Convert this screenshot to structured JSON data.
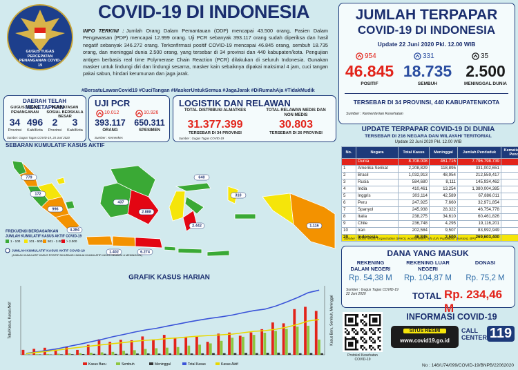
{
  "header": {
    "title": "COVID-19 DI INDONESIA",
    "logo_text": "GUGUS TUGAS PERCEPATAN PENANGANAN COVID-19",
    "info_label": "INFO TERKINI :",
    "info": "Jumlah Orang Dalam Pemantauan (ODP) mencapai 43.500 orang, Pasien Dalam Pengawasan (PDP) mencapai 12.999 orang. Uji PCR sebanyak 393.117 orang sudah diperiksa dan hasil negatif sebanyak 346.272 orang. Terkonfirmasi positif COVID-19 mencapai 46.845 orang, sembuh 18.735 orang, dan meninggal dunia 2.500 orang, yang tersebar di 34 provinsi dan 440 kabupaten/kota. Pengujian antigen berbasis real time Polymerase Chain Reaction (PCR) dilakukan di seluruh Indonesia. Gunakan masker untuk lindungi diri dan lindungi sesama, masker kain sebaiknya dipakai maksimal 4 jam, cuci tangan pakai sabun, hindari kerumunan dan jaga jarak.",
    "hashtags": "#BersatuLawanCovid19 #CuciTangan #MaskerUntukSemua #JagaJarak #DiRumahAja #TidakMudik"
  },
  "summary": {
    "title1": "JUMLAH TERPAPAR",
    "title2": "COVID-19 DI INDONESIA",
    "update": "Update 22 Juni 2020 Pkl. 12.00 WIB",
    "stats": [
      {
        "delta": "954",
        "value": "46.845",
        "label": "POSITIF",
        "color": "#e2231a"
      },
      {
        "delta": "331",
        "value": "18.735",
        "label": "SEMBUH",
        "color": "#2a4da0"
      },
      {
        "delta": "35",
        "value": "2.500",
        "label": "MENINGGAL DUNIA",
        "color": "#1a1a1a"
      }
    ],
    "spread": "TERSEBAR DI 34 PROVINSI, 440 KABUPATEN/KOTA",
    "source": "Sumber : Kementerian Kesehatan"
  },
  "regions": {
    "title": "DAERAH TELAH MENETAPKAN",
    "groups": [
      {
        "label": "GUGUS TUGAS PENANGANAN",
        "items": [
          {
            "value": "34",
            "unit": "Provinsi"
          },
          {
            "value": "496",
            "unit": "Kab/Kota"
          }
        ]
      },
      {
        "label": "PEMBATASAN SOSIAL BERSKALA BESAR",
        "items": [
          {
            "value": "2",
            "unit": "Provinsi"
          },
          {
            "value": "3",
            "unit": "Kab/Kota"
          }
        ]
      }
    ],
    "source": "Sumber: Gugus Tugas COVID-19, 20 Juni 2020"
  },
  "pcr": {
    "title": "UJI PCR",
    "items": [
      {
        "delta": "10.012",
        "value": "393.117",
        "label": "ORANG"
      },
      {
        "delta": "10.926",
        "value": "650.311",
        "label": "SPESIMEN"
      }
    ],
    "source": "Sumber : Kemenkes"
  },
  "logistics": {
    "title": "LOGISTIK DAN RELAWAN",
    "items": [
      {
        "label": "TOTAL DISTRIBUSI ALMATKES",
        "value": "31.377.399",
        "note": "TERSEBAR DI 34 PROVINSI"
      },
      {
        "label": "TOTAL RELAWAN MEDIS DAN NON MEDIS",
        "value": "30.803",
        "note": "TERSEBAR DI 26 PROVINSI"
      }
    ],
    "source": "Sumber : Gugus Tugas COVID-19"
  },
  "map": {
    "title": "SEBARAN KUMULATIF KASUS AKTIF",
    "labels": [
      "779",
      "172",
      "996",
      "4.384",
      "1.402",
      "6.274",
      "437",
      "2.888",
      "640",
      "2.442",
      "310",
      "1.116"
    ],
    "legend_title": "FREKUENSI BERDASARKAN",
    "legend_subtitle": "JUMLAH KUMULATIF KASUS AKTIF COVID-19",
    "classes": [
      {
        "label": "1 - 100",
        "color": "#3aa935"
      },
      {
        "label": "101 - 500",
        "color": "#f5e50a"
      },
      {
        "label": "501 - 2.000",
        "color": "#f39200"
      },
      {
        "label": "> 2.000",
        "color": "#e30613"
      }
    ],
    "note": "JUMLAH KUMULATIF KASUS AKTIF COVID-19",
    "note_detail": "(JUMLAH KUMULATIF KASUS POSITIF DIKURANGI JUMLAH KUMULATIF KASUS SEMBUH & MENINGGAL)"
  },
  "chart_data": {
    "type": "bar",
    "title": "GRAFIK KASUS HARIAN",
    "y_label": "Total Kasus, Kasus Aktif",
    "y2_label": "Kasus Baru, Sembuh, Meninggal",
    "categories": [
      null,
      null,
      null,
      null,
      null,
      null,
      null,
      null,
      null,
      null,
      null,
      null,
      null,
      null,
      null,
      null,
      null,
      null,
      null,
      null,
      null,
      null,
      null,
      null,
      null,
      null,
      null,
      null
    ],
    "ylim": [
      0,
      50000
    ],
    "y2lim": [
      0,
      1500
    ],
    "series": [
      {
        "name": "Kasus Baru",
        "type": "bar",
        "axis": "y2",
        "color": "#e2231a",
        "values": [
          107,
          130,
          153,
          109,
          181,
          106,
          218,
          337,
          282,
          327,
          316,
          399,
          336,
          434,
          357,
          375,
          395,
          283,
          460,
          484,
          415,
          486,
          557,
          703,
          684,
          993,
          1043,
          954
        ]
      },
      {
        "name": "Sembuh",
        "type": "bar",
        "axis": "y2",
        "color": "#8dc63f",
        "values": [
          9,
          13,
          17,
          24,
          30,
          37,
          46,
          53,
          63,
          88,
          100,
          127,
          143,
          155,
          168,
          200,
          220,
          248,
          303,
          371,
          392,
          433,
          480,
          520,
          563,
          612,
          632,
          331
        ]
      },
      {
        "name": "Meninggal",
        "type": "bar",
        "axis": "y2",
        "color": "#333333",
        "values": [
          4,
          7,
          5,
          10,
          12,
          15,
          20,
          22,
          19,
          25,
          28,
          30,
          27,
          32,
          35,
          30,
          33,
          38,
          36,
          40,
          42,
          38,
          45,
          47,
          40,
          35,
          41,
          35
        ]
      },
      {
        "name": "Total Kasus",
        "type": "line",
        "axis": "y",
        "color": "#3a53d8",
        "values": [
          1046,
          2092,
          3293,
          4557,
          6248,
          7775,
          9511,
          11192,
          13112,
          14749,
          16496,
          18010,
          19189,
          20796,
          22271,
          23851,
          25216,
          26473,
          27549,
          28818,
          30514,
          32033,
          33076,
          35295,
          38277,
          41431,
          45029,
          46845
        ]
      },
      {
        "name": "Kasus Aktif",
        "type": "line",
        "axis": "y",
        "color": "#e8d800",
        "values": [
          900,
          1700,
          2600,
          3500,
          4600,
          5500,
          6400,
          7300,
          8100,
          8900,
          9800,
          10500,
          11000,
          11800,
          12300,
          13000,
          13600,
          14000,
          14500,
          15000,
          16000,
          17000,
          17500,
          18500,
          20000,
          22000,
          24500,
          25610
        ]
      }
    ]
  },
  "world": {
    "title": "UPDATE TERPAPAR COVID-19 DI DUNIA",
    "subtitle": "TERSEBAR DI 216 NEGARA DAN WILAYAH/ TERITORIAL",
    "update": "Update 22 Juni 2020 Pkl. 12.00 WIB",
    "columns": [
      "No.",
      "Negara",
      "Total Kasus",
      "Meninggal",
      "Jumlah Penduduk",
      "Kematian/1 Juta Penduduk"
    ],
    "rows": [
      [
        "",
        "Dunia",
        "8.708.008",
        "461.715",
        "7.796.798.739",
        "59"
      ],
      [
        "1",
        "Amerika Serikat",
        "2,208,829",
        "118,895",
        "331,002,651",
        "359"
      ],
      [
        "2",
        "Brasil",
        "1,032,913",
        "48,954",
        "212,559,417",
        "230"
      ],
      [
        "3",
        "Rusia",
        "584,680",
        "8,111",
        "145,934,462",
        "56"
      ],
      [
        "4",
        "India",
        "410,461",
        "13,254",
        "1,380,004,385",
        "10"
      ],
      [
        "5",
        "Inggris",
        "303,114",
        "42,589",
        "67,886,011",
        "627"
      ],
      [
        "6",
        "Peru",
        "247,925",
        "7,660",
        "32,971,854",
        "232"
      ],
      [
        "7",
        "Spanyol",
        "245,938",
        "28,322",
        "46,754,778",
        "606"
      ],
      [
        "8",
        "Italia",
        "238,275",
        "34,610",
        "60,461,826",
        "572"
      ],
      [
        "9",
        "Chile",
        "236,748",
        "4,295",
        "19,116,201",
        "225"
      ],
      [
        "10",
        "Iran",
        "202,584",
        "9,507",
        "83,992,949",
        "113"
      ],
      [
        "29",
        "Indonesia",
        "46,845",
        "2,500",
        "269,603,400",
        "9"
      ]
    ],
    "source": "Sumber : World Health Organization (WHO), worldometers.info (UN Population Division), BPS"
  },
  "funds": {
    "title": "DANA YANG MASUK",
    "items": [
      {
        "label": "REKENING DALAM NEGERI",
        "value": "Rp. 54,38 M"
      },
      {
        "label": "REKENING LUAR NEGERI",
        "value": "Rp. 104,87 M"
      },
      {
        "label": "DONASI",
        "value": "Rp. 75,2 M"
      }
    ],
    "source": "Sumber : Gugus Tugas COVID-19 22 Juni 2020",
    "total_label": "TOTAL",
    "total": "Rp. 234,46 M"
  },
  "info": {
    "title": "INFORMASI COVID-19",
    "qr_caption": "Protokol Kesehatan COVID-19",
    "site_label": "SITUS RESMI",
    "site": "www.covid19.go.id",
    "call_label": "CALL CENTER",
    "call": "119"
  },
  "footer": "No : 146/U74/099/COVID-19/BNPB/22062020"
}
